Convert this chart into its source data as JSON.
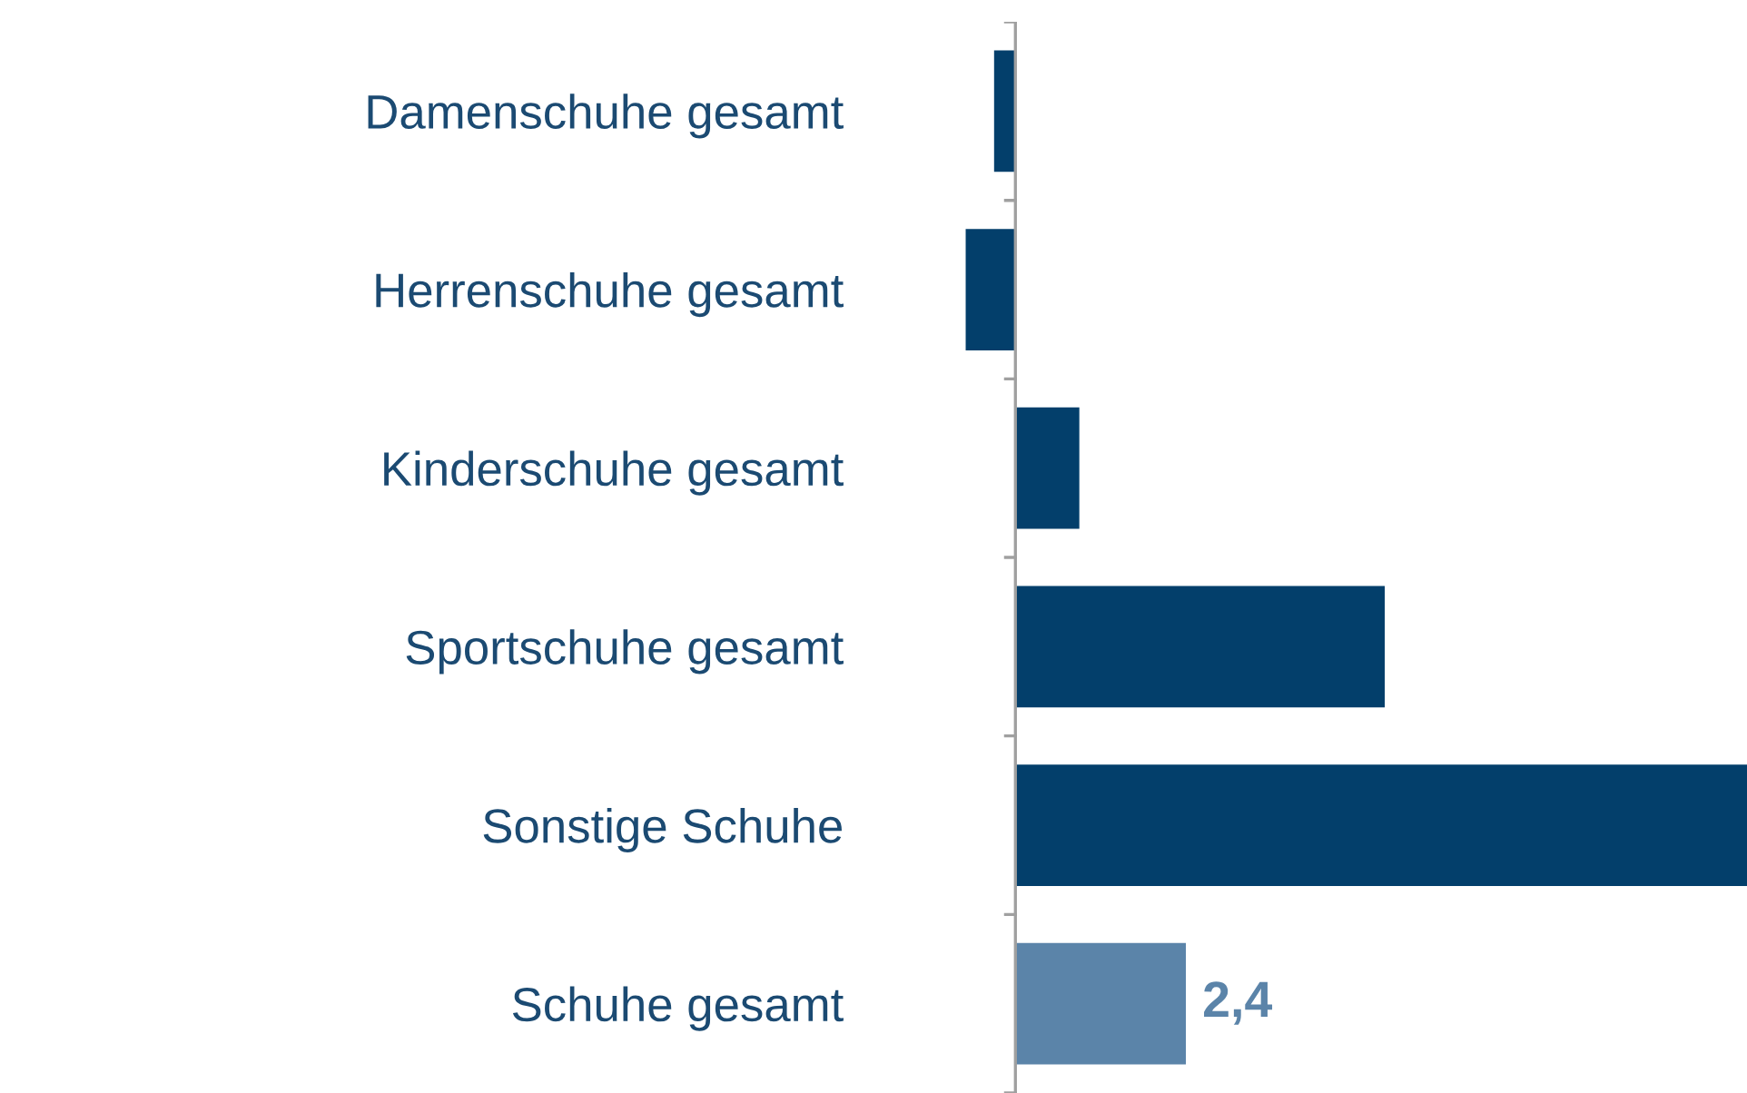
{
  "chart_data": {
    "type": "bar",
    "orientation": "horizontal",
    "categories": [
      "Damenschuhe gesamt",
      "Herrenschuhe gesamt",
      "Kinderschuhe gesamt",
      "Sportschuhe gesamt",
      "Sonstige Schuhe",
      "Schuhe gesamt"
    ],
    "values": [
      -0.3,
      -0.7,
      0.9,
      5.2,
      10.3,
      2.4
    ],
    "colors": [
      "#033f6b",
      "#033f6b",
      "#033f6b",
      "#033f6b",
      "#033f6b",
      "#5b84a9"
    ],
    "value_labels": [
      null,
      null,
      null,
      null,
      null,
      "2,4"
    ],
    "grid": false,
    "legend": false
  }
}
